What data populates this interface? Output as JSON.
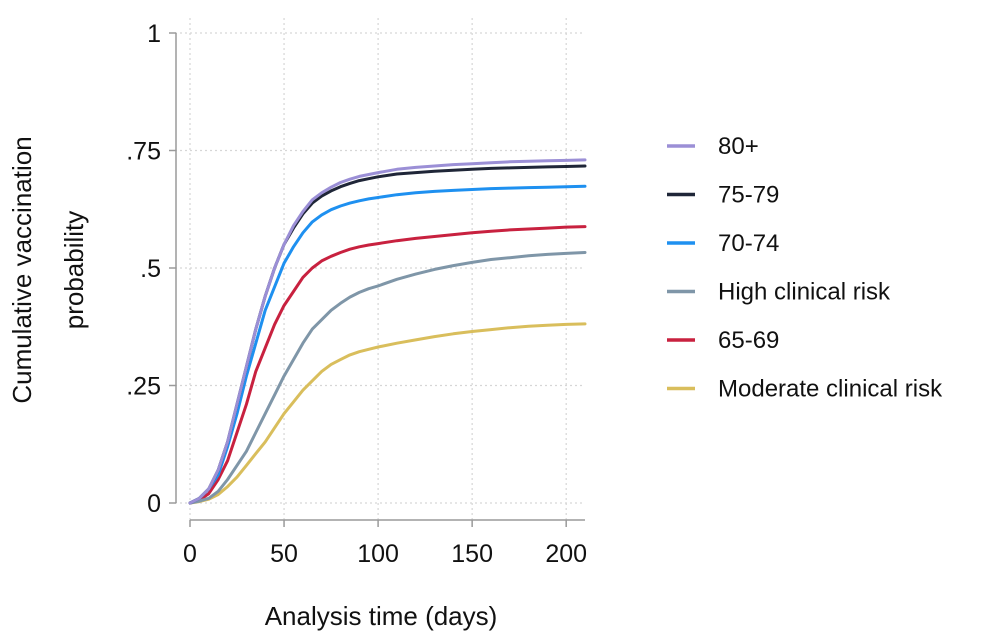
{
  "chart_data": {
    "type": "line",
    "xlabel": "Analysis time (days)",
    "ylabel_lines": [
      "Cumulative vaccination",
      "probability"
    ],
    "xlim": [
      0,
      210
    ],
    "ylim": [
      0,
      1
    ],
    "xticks": [
      0,
      50,
      100,
      150,
      200
    ],
    "xtick_labels": [
      "0",
      "50",
      "100",
      "150",
      "200"
    ],
    "yticks": [
      0,
      0.25,
      0.5,
      0.75,
      1
    ],
    "ytick_labels": [
      "0",
      ".25",
      ".5",
      ".75",
      "1"
    ],
    "grid": true,
    "legend_position": "right",
    "x": [
      0,
      5,
      10,
      15,
      20,
      25,
      30,
      35,
      40,
      45,
      50,
      55,
      60,
      65,
      70,
      75,
      80,
      85,
      90,
      95,
      100,
      110,
      120,
      130,
      140,
      150,
      160,
      170,
      180,
      190,
      200,
      210
    ],
    "series": [
      {
        "name": "80+",
        "color": "#9b8fd6",
        "values": [
          0,
          0.01,
          0.03,
          0.07,
          0.13,
          0.21,
          0.29,
          0.37,
          0.44,
          0.5,
          0.55,
          0.59,
          0.62,
          0.645,
          0.66,
          0.672,
          0.682,
          0.689,
          0.695,
          0.699,
          0.703,
          0.71,
          0.714,
          0.717,
          0.72,
          0.722,
          0.724,
          0.726,
          0.727,
          0.728,
          0.729,
          0.73
        ]
      },
      {
        "name": "75-79",
        "color": "#1f2638",
        "values": [
          0,
          0.01,
          0.03,
          0.07,
          0.13,
          0.21,
          0.29,
          0.37,
          0.44,
          0.5,
          0.55,
          0.585,
          0.615,
          0.638,
          0.653,
          0.664,
          0.673,
          0.68,
          0.686,
          0.69,
          0.694,
          0.7,
          0.703,
          0.706,
          0.708,
          0.71,
          0.712,
          0.713,
          0.714,
          0.715,
          0.716,
          0.717
        ]
      },
      {
        "name": "70-74",
        "color": "#1e90f0",
        "values": [
          0,
          0.01,
          0.03,
          0.06,
          0.12,
          0.19,
          0.27,
          0.34,
          0.41,
          0.46,
          0.51,
          0.545,
          0.575,
          0.598,
          0.613,
          0.624,
          0.632,
          0.638,
          0.643,
          0.647,
          0.65,
          0.656,
          0.66,
          0.663,
          0.665,
          0.667,
          0.669,
          0.67,
          0.671,
          0.672,
          0.673,
          0.674
        ]
      },
      {
        "name": "High clinical risk",
        "color": "#7f96a8",
        "values": [
          0,
          0.004,
          0.01,
          0.025,
          0.05,
          0.08,
          0.11,
          0.15,
          0.19,
          0.23,
          0.27,
          0.305,
          0.34,
          0.37,
          0.39,
          0.41,
          0.425,
          0.438,
          0.448,
          0.456,
          0.462,
          0.476,
          0.487,
          0.497,
          0.505,
          0.512,
          0.518,
          0.522,
          0.526,
          0.529,
          0.531,
          0.533
        ]
      },
      {
        "name": "65-69",
        "color": "#c8213f",
        "values": [
          0,
          0.006,
          0.02,
          0.05,
          0.09,
          0.15,
          0.21,
          0.28,
          0.33,
          0.38,
          0.42,
          0.45,
          0.48,
          0.5,
          0.515,
          0.525,
          0.533,
          0.54,
          0.545,
          0.549,
          0.552,
          0.558,
          0.563,
          0.567,
          0.571,
          0.575,
          0.578,
          0.581,
          0.583,
          0.585,
          0.587,
          0.588
        ]
      },
      {
        "name": "Moderate clinical risk",
        "color": "#d9be5c",
        "values": [
          0,
          0.003,
          0.008,
          0.018,
          0.035,
          0.055,
          0.08,
          0.105,
          0.13,
          0.16,
          0.19,
          0.215,
          0.24,
          0.26,
          0.28,
          0.295,
          0.305,
          0.315,
          0.322,
          0.327,
          0.332,
          0.34,
          0.347,
          0.354,
          0.36,
          0.365,
          0.369,
          0.373,
          0.376,
          0.378,
          0.38,
          0.381
        ]
      }
    ]
  }
}
